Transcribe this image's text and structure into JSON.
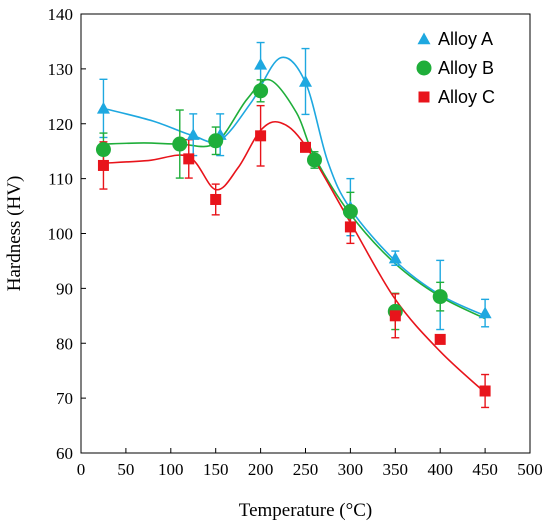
{
  "chart_data": {
    "type": "scatter",
    "xlabel": "Temperature (°C)",
    "ylabel": "Hardness (HV)",
    "xlim": [
      0,
      500
    ],
    "ylim": [
      60,
      140
    ],
    "xticks": [
      0,
      50,
      100,
      150,
      200,
      250,
      300,
      350,
      400,
      450,
      500
    ],
    "yticks": [
      60,
      70,
      80,
      90,
      100,
      110,
      120,
      130,
      140
    ],
    "grid": false,
    "legend_position": "top-right",
    "series": [
      {
        "name": "Alloy A",
        "marker": "triangle",
        "color": "#1EA8E0",
        "points": [
          {
            "x": 25,
            "y": 122.8,
            "err": 5.3
          },
          {
            "x": 125,
            "y": 118.0,
            "err": 3.8
          },
          {
            "x": 155,
            "y": 118.0,
            "err": 3.8
          },
          {
            "x": 200,
            "y": 130.8,
            "err": 4.0
          },
          {
            "x": 250,
            "y": 127.7,
            "err": 6.0
          },
          {
            "x": 300,
            "y": 104.8,
            "err": 5.2
          },
          {
            "x": 350,
            "y": 95.5,
            "err": 1.3
          },
          {
            "x": 400,
            "y": 88.8,
            "err": 6.3
          },
          {
            "x": 450,
            "y": 85.5,
            "err": 2.5
          }
        ],
        "curve": [
          [
            25,
            122.8
          ],
          [
            80,
            120.5
          ],
          [
            125,
            117.8
          ],
          [
            155,
            117.0
          ],
          [
            190,
            124.0
          ],
          [
            222,
            132.0
          ],
          [
            250,
            127.5
          ],
          [
            275,
            113.0
          ],
          [
            300,
            104.5
          ],
          [
            350,
            95.0
          ],
          [
            400,
            88.8
          ],
          [
            450,
            85.0
          ]
        ]
      },
      {
        "name": "Alloy B",
        "marker": "circle",
        "color": "#1FAE3A",
        "points": [
          {
            "x": 25,
            "y": 115.3,
            "err": 3.0
          },
          {
            "x": 110,
            "y": 116.3,
            "err": 6.2
          },
          {
            "x": 150,
            "y": 116.9,
            "err": 2.5
          },
          {
            "x": 200,
            "y": 126.0,
            "err": 2.0
          },
          {
            "x": 260,
            "y": 113.4,
            "err": 1.5
          },
          {
            "x": 300,
            "y": 104.0,
            "err": 3.5
          },
          {
            "x": 350,
            "y": 85.8,
            "err": 3.3
          },
          {
            "x": 400,
            "y": 88.5,
            "err": 2.6
          }
        ],
        "curve": [
          [
            25,
            116.3
          ],
          [
            70,
            116.5
          ],
          [
            110,
            116.3
          ],
          [
            150,
            116.5
          ],
          [
            185,
            124.5
          ],
          [
            210,
            128.0
          ],
          [
            240,
            122.0
          ],
          [
            260,
            114.0
          ],
          [
            300,
            103.5
          ],
          [
            350,
            94.5
          ],
          [
            400,
            88.5
          ],
          [
            450,
            84.5
          ]
        ]
      },
      {
        "name": "Alloy C",
        "marker": "square",
        "color": "#E8141B",
        "points": [
          {
            "x": 25,
            "y": 112.4,
            "err": 4.3
          },
          {
            "x": 120,
            "y": 113.6,
            "err": 3.5
          },
          {
            "x": 150,
            "y": 106.2,
            "err": 2.8
          },
          {
            "x": 200,
            "y": 117.8,
            "err": 5.5
          },
          {
            "x": 250,
            "y": 115.7,
            "err": 0.0
          },
          {
            "x": 300,
            "y": 101.2,
            "err": 3.0
          },
          {
            "x": 350,
            "y": 85.0,
            "err": 4.0
          },
          {
            "x": 400,
            "y": 80.7,
            "err": 0.0
          },
          {
            "x": 450,
            "y": 71.3,
            "err": 3.0
          }
        ],
        "curve": [
          [
            25,
            112.8
          ],
          [
            75,
            113.3
          ],
          [
            120,
            114.0
          ],
          [
            150,
            108.0
          ],
          [
            175,
            112.0
          ],
          [
            200,
            118.8
          ],
          [
            222,
            120.2
          ],
          [
            250,
            116.0
          ],
          [
            300,
            102.0
          ],
          [
            350,
            88.0
          ],
          [
            400,
            78.5
          ],
          [
            450,
            71.0
          ]
        ]
      }
    ]
  }
}
